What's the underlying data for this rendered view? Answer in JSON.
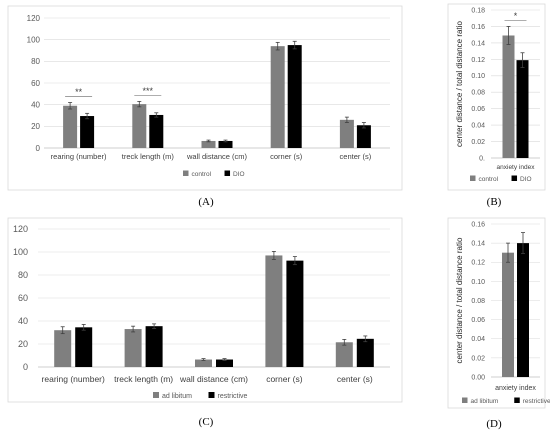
{
  "colors": {
    "series1": "#7f7f7f",
    "series2": "#000000"
  },
  "chart_data": [
    {
      "panel": "(A)",
      "type": "bar",
      "categories": [
        "rearing (number)",
        "treck length (m)",
        "wall distance (cm)",
        "corner (s)",
        "center (s)"
      ],
      "series": [
        {
          "name": "control",
          "values": [
            39,
            40.5,
            6.5,
            94,
            26
          ],
          "errors": [
            3,
            2.5,
            0.8,
            3.5,
            2.5
          ]
        },
        {
          "name": "DIO",
          "values": [
            29.5,
            30.5,
            6.5,
            95,
            21
          ],
          "errors": [
            2.5,
            2,
            0.8,
            3.5,
            2.5
          ]
        }
      ],
      "significance": [
        {
          "category": "rearing (number)",
          "label": "**"
        },
        {
          "category": "treck length (m)",
          "label": "***"
        }
      ],
      "ylim": [
        0,
        120
      ],
      "yticks": [
        "0",
        "20",
        "40",
        "60",
        "80",
        "100",
        "120"
      ],
      "ylabel": "",
      "xlabel": "",
      "legend": "bottom",
      "grid": true
    },
    {
      "panel": "(B)",
      "type": "bar",
      "categories": [
        "anxiety index"
      ],
      "series": [
        {
          "name": "control",
          "values": [
            0.149
          ],
          "errors": [
            0.011
          ]
        },
        {
          "name": "DIO",
          "values": [
            0.119
          ],
          "errors": [
            0.009
          ]
        }
      ],
      "significance": [
        {
          "category": "anxiety index",
          "label": "*"
        }
      ],
      "ylim": [
        0,
        0.18
      ],
      "yticks": [
        "0.",
        "0.02",
        "0.04",
        "0.06",
        "0.08",
        "0.10",
        "0.12",
        "0.14",
        "0.16",
        "0.18"
      ],
      "ylabel": "center distance / total distance ratio",
      "xlabel": "",
      "legend": "bottom",
      "grid": true
    },
    {
      "panel": "(C)",
      "type": "bar",
      "categories": [
        "rearing (number)",
        "treck length (m)",
        "wall distance (cm)",
        "corner (s)",
        "center (s)"
      ],
      "series": [
        {
          "name": "ad libitum",
          "values": [
            32,
            33,
            6.5,
            97,
            21.5
          ],
          "errors": [
            3,
            2.5,
            0.8,
            3.5,
            2.5
          ]
        },
        {
          "name": "restrictive",
          "values": [
            34.5,
            35.5,
            6.5,
            92.5,
            24.5
          ],
          "errors": [
            2.5,
            2,
            0.8,
            3.5,
            2.5
          ]
        }
      ],
      "significance": [],
      "ylim": [
        0,
        120
      ],
      "yticks": [
        "0",
        "20",
        "40",
        "60",
        "80",
        "100",
        "120"
      ],
      "ylabel": "",
      "xlabel": "",
      "legend": "bottom",
      "grid": true
    },
    {
      "panel": "(D)",
      "type": "bar",
      "categories": [
        "anxiety index"
      ],
      "series": [
        {
          "name": "ad libitum",
          "values": [
            0.13
          ],
          "errors": [
            0.01
          ]
        },
        {
          "name": "restrictive",
          "values": [
            0.14
          ],
          "errors": [
            0.011
          ]
        }
      ],
      "significance": [],
      "ylim": [
        0,
        0.16
      ],
      "yticks": [
        "0.00",
        "0.02",
        "0.04",
        "0.06",
        "0.08",
        "0.10",
        "0.12",
        "0.14",
        "0.16"
      ],
      "ylabel": "center distance / total distance ratio",
      "xlabel": "",
      "legend": "bottom",
      "grid": true
    }
  ]
}
